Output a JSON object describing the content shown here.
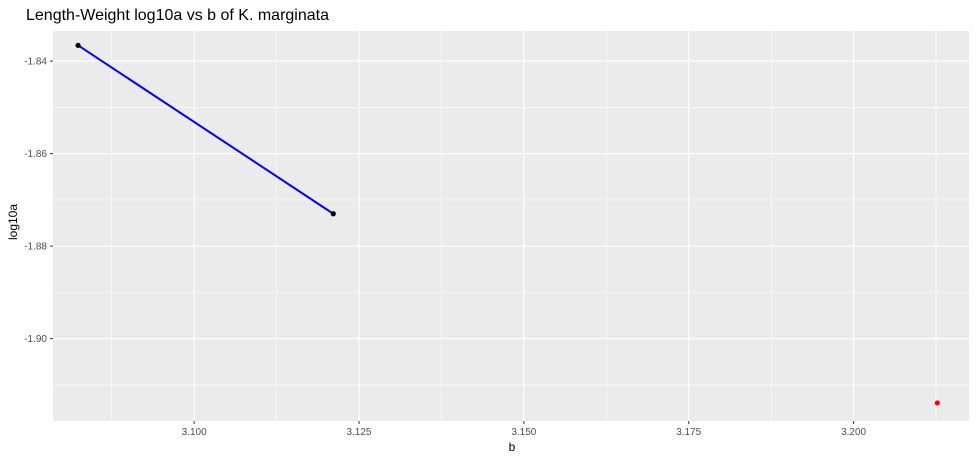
{
  "chart_data": {
    "type": "scatter",
    "title": "Length-Weight log10a vs b of K. marginata",
    "xlabel": "b",
    "ylabel": "log10a",
    "xlim": [
      3.0786,
      3.2175
    ],
    "ylim": [
      -1.9178,
      -1.8335
    ],
    "x_ticks": [
      3.1,
      3.125,
      3.15,
      3.175,
      3.2
    ],
    "x_tick_labels": [
      "3.100",
      "3.125",
      "3.150",
      "3.175",
      "3.200"
    ],
    "y_ticks": [
      -1.84,
      -1.86,
      -1.88,
      -1.9
    ],
    "y_tick_labels": [
      "-1.84",
      "-1.86",
      "-1.88",
      "-1.90"
    ],
    "grid": true,
    "colors": {
      "panel_background": "#ebebeb",
      "grid": "#ffffff",
      "line": "#0000ff",
      "black_points": "#000000",
      "red_point": "#ff0000"
    },
    "series": [
      {
        "type": "line",
        "color": "#0000ff",
        "points": [
          {
            "x": 3.0824,
            "y": -1.8366
          },
          {
            "x": 3.1211,
            "y": -1.873
          }
        ]
      },
      {
        "type": "points",
        "color": "#000000",
        "points": [
          {
            "x": 3.0824,
            "y": -1.8366
          },
          {
            "x": 3.1211,
            "y": -1.873
          }
        ]
      },
      {
        "type": "points",
        "color": "#ff0000",
        "points": [
          {
            "x": 3.2127,
            "y": -1.9139
          }
        ]
      }
    ]
  }
}
